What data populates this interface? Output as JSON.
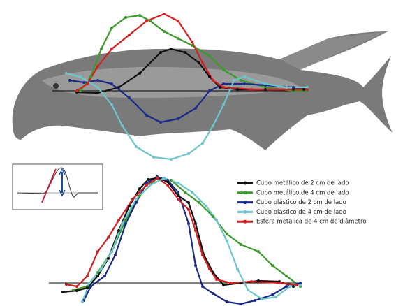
{
  "legend": {
    "entries": [
      {
        "label": "Cubo metálico de 2 cm de lado",
        "color": "#111111"
      },
      {
        "label": "Cubo metálico de 4 cm de lado",
        "color": "#3a9a2a"
      },
      {
        "label": "Cubo plástico de 2 cm de lado",
        "color": "#1a2a8a"
      },
      {
        "label": "Cubo plástico de 4 cm de lado",
        "color": "#6cc6cc"
      },
      {
        "label": "Esfera metálica de 4 cm de diâmetro",
        "color": "#d42020"
      }
    ]
  }
}
